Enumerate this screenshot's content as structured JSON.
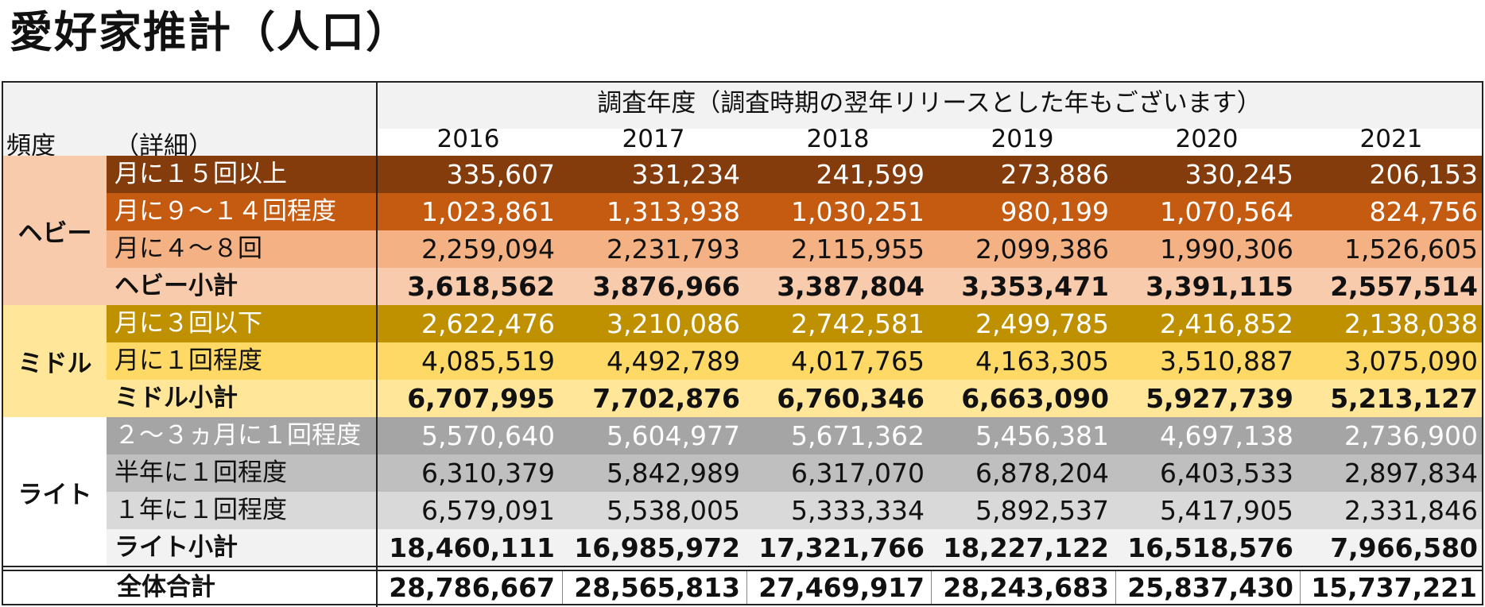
{
  "title": "愛好家推計（人口）",
  "header": {
    "survey_caption": "調査年度（調査時期の翌年リリースとした年もございます）",
    "col_freq": "頻度",
    "col_detail": "（詳細）",
    "years": [
      "2016",
      "2017",
      "2018",
      "2019",
      "2020",
      "2021"
    ]
  },
  "groups": {
    "heavy": "ヘビー",
    "middle": "ミドル",
    "light": "ライト"
  },
  "rows": [
    {
      "label": "月に１５回以上",
      "values": [
        "335,607",
        "331,234",
        "241,599",
        "273,886",
        "330,245",
        "206,153"
      ]
    },
    {
      "label": "月に９～１４回程度",
      "values": [
        "1,023,861",
        "1,313,938",
        "1,030,251",
        "980,199",
        "1,070,564",
        "824,756"
      ]
    },
    {
      "label": "月に４～８回",
      "values": [
        "2,259,094",
        "2,231,793",
        "2,115,955",
        "2,099,386",
        "1,990,306",
        "1,526,605"
      ]
    },
    {
      "label": "ヘビー小計",
      "values": [
        "3,618,562",
        "3,876,966",
        "3,387,804",
        "3,353,471",
        "3,391,115",
        "2,557,514"
      ]
    },
    {
      "label": "月に３回以下",
      "values": [
        "2,622,476",
        "3,210,086",
        "2,742,581",
        "2,499,785",
        "2,416,852",
        "2,138,038"
      ]
    },
    {
      "label": "月に１回程度",
      "values": [
        "4,085,519",
        "4,492,789",
        "4,017,765",
        "4,163,305",
        "3,510,887",
        "3,075,090"
      ]
    },
    {
      "label": "ミドル小計",
      "values": [
        "6,707,995",
        "7,702,876",
        "6,760,346",
        "6,663,090",
        "5,927,739",
        "5,213,127"
      ]
    },
    {
      "label": "２～３ヵ月に１回程度",
      "values": [
        "5,570,640",
        "5,604,977",
        "5,671,362",
        "5,456,381",
        "4,697,138",
        "2,736,900"
      ]
    },
    {
      "label": "半年に１回程度",
      "values": [
        "6,310,379",
        "5,842,989",
        "6,317,070",
        "6,878,204",
        "6,403,533",
        "2,897,834"
      ]
    },
    {
      "label": "１年に１回程度",
      "values": [
        "6,579,091",
        "5,538,005",
        "5,333,334",
        "5,892,537",
        "5,417,905",
        "2,331,846"
      ]
    },
    {
      "label": "ライト小計",
      "values": [
        "18,460,111",
        "16,985,972",
        "17,321,766",
        "18,227,122",
        "16,518,576",
        "7,966,580"
      ]
    }
  ],
  "total": {
    "label": "全体合計",
    "values": [
      "28,786,667",
      "28,565,813",
      "27,469,917",
      "28,243,683",
      "25,837,430",
      "15,737,221"
    ]
  },
  "colors": {
    "heavy_row1": "#843c0c",
    "heavy_row2": "#c55a11",
    "heavy_row3": "#f4b183",
    "heavy_sub": "#f8cbad",
    "middle_row1": "#bf9000",
    "middle_row2": "#ffd966",
    "middle_sub": "#ffe699",
    "light_row1": "#a5a5a5",
    "light_row2": "#bfbfbf",
    "light_row3": "#d9d9d9",
    "header_bg": "#f2f2f2"
  }
}
